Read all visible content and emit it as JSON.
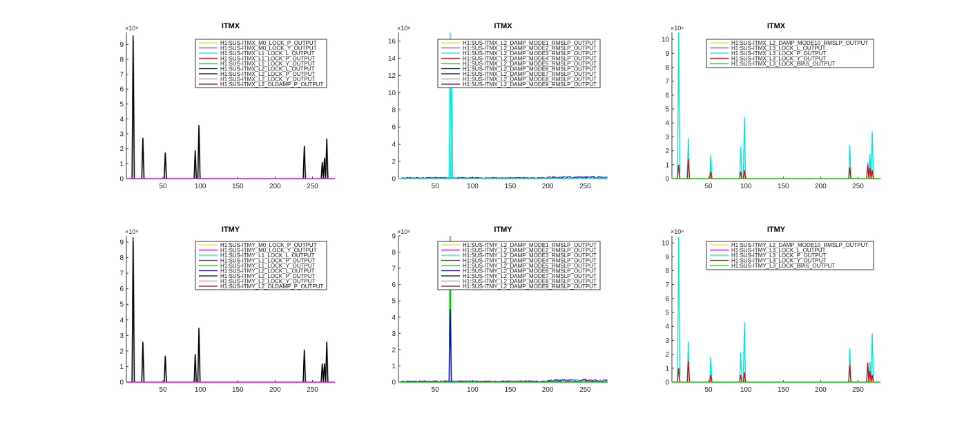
{
  "chart_data": [
    {
      "type": "line",
      "title": "ITMX",
      "exponent_label": "×10⁹",
      "xlim": [
        1,
        280
      ],
      "ylim": [
        0,
        9.8
      ],
      "xticks": [
        50,
        100,
        150,
        200,
        250
      ],
      "yticks": [
        0,
        1,
        2,
        3,
        4,
        5,
        6,
        7,
        8,
        9
      ],
      "legend_position": "top-right",
      "spikes": [
        [
          10,
          9.6
        ],
        [
          23,
          2.75
        ],
        [
          53,
          1.75
        ],
        [
          93,
          1.9
        ],
        [
          98,
          3.6
        ],
        [
          239,
          2.2
        ],
        [
          263,
          1.1
        ],
        [
          266,
          1.4
        ],
        [
          269,
          2.7
        ]
      ],
      "series": [
        {
          "name": "H1:SUS-ITMX_M0_LOCK_P_OUTPUT",
          "color": "#e6e600"
        },
        {
          "name": "H1:SUS-ITMX_M0_LOCK_Y_OUTPUT",
          "color": "#e600e6"
        },
        {
          "name": "H1:SUS-ITMX_L1_LOCK_L_OUTPUT",
          "color": "#00e6e6"
        },
        {
          "name": "H1:SUS-ITMX_L1_LOCK_P_OUTPUT",
          "color": "#e60000"
        },
        {
          "name": "H1:SUS-ITMX_L1_LOCK_Y_OUTPUT",
          "color": "#00cc00"
        },
        {
          "name": "H1:SUS-ITMX_L2_LOCK_L_OUTPUT",
          "color": "#0000cc"
        },
        {
          "name": "H1:SUS-ITMX_L2_LOCK_P_OUTPUT",
          "color": "#000000"
        },
        {
          "name": "H1:SUS-ITMX_L2_LOCK_Y_OUTPUT",
          "color": "#999999"
        },
        {
          "name": "H1:SUS-ITMX_L2_OLDAMP_P_OUTPUT",
          "color": "#800040"
        }
      ],
      "spike_colors": [
        "#000000",
        "#999999"
      ],
      "baseline_color": "#e600e6"
    },
    {
      "type": "line",
      "title": "ITMX",
      "exponent_label": "×10⁶",
      "xlim": [
        1,
        280
      ],
      "ylim": [
        0,
        17
      ],
      "xticks": [
        50,
        100,
        150,
        200,
        250
      ],
      "yticks": [
        0,
        2,
        4,
        6,
        8,
        10,
        12,
        14,
        16
      ],
      "legend_position": "top-right",
      "spikes": [
        [
          70,
          17
        ],
        [
          72,
          11
        ]
      ],
      "noise": [
        [
          5,
          280,
          0.25
        ]
      ],
      "series": [
        {
          "name": "H1:SUS-ITMX_L2_DAMP_MODE1_RMSLP_OUTPUT",
          "color": "#e6e600"
        },
        {
          "name": "H1:SUS-ITMX_L2_DAMP_MODE2_RMSLP_OUTPUT",
          "color": "#e600e6"
        },
        {
          "name": "H1:SUS-ITMX_L2_DAMP_MODE3_RMSLP_OUTPUT",
          "color": "#00e6e6"
        },
        {
          "name": "H1:SUS-ITMX_L2_DAMP_MODE4_RMSLP_OUTPUT",
          "color": "#e60000"
        },
        {
          "name": "H1:SUS-ITMX_L2_DAMP_MODE5_RMSLP_OUTPUT",
          "color": "#00cc00"
        },
        {
          "name": "H1:SUS-ITMX_L2_DAMP_MODE6_RMSLP_OUTPUT",
          "color": "#0000cc"
        },
        {
          "name": "H1:SUS-ITMX_L2_DAMP_MODE7_RMSLP_OUTPUT",
          "color": "#000000"
        },
        {
          "name": "H1:SUS-ITMX_L2_DAMP_MODE8_RMSLP_OUTPUT",
          "color": "#999999"
        },
        {
          "name": "H1:SUS-ITMX_L2_DAMP_MODE9_RMSLP_OUTPUT",
          "color": "#800040"
        }
      ],
      "spike_colors": [
        "#00e6e6"
      ],
      "baseline_color": "#00e6e6"
    },
    {
      "type": "line",
      "title": "ITMX",
      "exponent_label": "×10⁹",
      "xlim": [
        1,
        280
      ],
      "ylim": [
        0,
        10.5
      ],
      "xticks": [
        50,
        100,
        150,
        200,
        250
      ],
      "yticks": [
        0,
        1,
        2,
        3,
        4,
        5,
        6,
        7,
        8,
        9,
        10
      ],
      "legend_position": "top-right",
      "spikes": [
        [
          10,
          10.5
        ],
        [
          23,
          2.9
        ],
        [
          53,
          1.7
        ],
        [
          93,
          2.3
        ],
        [
          98,
          4.4
        ],
        [
          239,
          2.4
        ],
        [
          263,
          1.2
        ],
        [
          266,
          1.8
        ],
        [
          269,
          3.4
        ]
      ],
      "red_spikes": [
        [
          10,
          1.0
        ],
        [
          23,
          1.4
        ],
        [
          53,
          0.5
        ],
        [
          93,
          0.5
        ],
        [
          98,
          0.6
        ],
        [
          239,
          0.8
        ],
        [
          263,
          1.0
        ],
        [
          266,
          0.8
        ],
        [
          269,
          0.6
        ]
      ],
      "series": [
        {
          "name": "H1:SUS-ITMX_L2_DAMP_MODE10_RMSLP_OUTPUT",
          "color": "#e6e600"
        },
        {
          "name": "H1:SUS-ITMX_L3_LOCK_L_OUTPUT",
          "color": "#e600e6"
        },
        {
          "name": "H1:SUS-ITMX_L3_LOCK_P_OUTPUT",
          "color": "#00e6e6"
        },
        {
          "name": "H1:SUS-ITMX_L3_LOCK_Y_OUTPUT",
          "color": "#e60000"
        },
        {
          "name": "H1:SUS-ITMX_L3_LOCK_BIAS_OUTPUT",
          "color": "#00cc00"
        }
      ],
      "spike_colors": [
        "#00e6e6"
      ],
      "baseline_color": "#00cc00"
    },
    {
      "type": "line",
      "title": "ITMY",
      "exponent_label": "×10⁹",
      "xlim": [
        1,
        280
      ],
      "ylim": [
        0,
        9.4
      ],
      "xticks": [
        50,
        100,
        150,
        200,
        250
      ],
      "yticks": [
        0,
        1,
        2,
        3,
        4,
        5,
        6,
        7,
        8,
        9
      ],
      "legend_position": "top-right",
      "spikes": [
        [
          10,
          9.3
        ],
        [
          23,
          2.6
        ],
        [
          53,
          1.7
        ],
        [
          93,
          1.8
        ],
        [
          98,
          3.5
        ],
        [
          239,
          2.1
        ],
        [
          263,
          1.2
        ],
        [
          266,
          1.2
        ],
        [
          269,
          2.6
        ]
      ],
      "series": [
        {
          "name": "H1:SUS-ITMY_M0_LOCK_P_OUTPUT",
          "color": "#e6e600"
        },
        {
          "name": "H1:SUS-ITMY_M0_LOCK_Y_OUTPUT",
          "color": "#e600e6"
        },
        {
          "name": "H1:SUS-ITMY_L1_LOCK_L_OUTPUT",
          "color": "#00e6e6"
        },
        {
          "name": "H1:SUS-ITMY_L1_LOCK_P_OUTPUT",
          "color": "#e60000"
        },
        {
          "name": "H1:SUS-ITMY_L1_LOCK_Y_OUTPUT",
          "color": "#00cc00"
        },
        {
          "name": "H1:SUS-ITMY_L2_LOCK_L_OUTPUT",
          "color": "#0000cc"
        },
        {
          "name": "H1:SUS-ITMY_L2_LOCK_P_OUTPUT",
          "color": "#000000"
        },
        {
          "name": "H1:SUS-ITMY_L2_LOCK_Y_OUTPUT",
          "color": "#999999"
        },
        {
          "name": "H1:SUS-ITMY_L2_OLDAMP_P_OUTPUT",
          "color": "#800040"
        }
      ],
      "spike_colors": [
        "#000000",
        "#999999"
      ],
      "baseline_color": "#e600e6"
    },
    {
      "type": "line",
      "title": "ITMY",
      "exponent_label": "×10⁶",
      "xlim": [
        1,
        280
      ],
      "ylim": [
        0,
        9
      ],
      "xticks": [
        50,
        100,
        150,
        200,
        250
      ],
      "yticks": [
        0,
        1,
        2,
        3,
        4,
        5,
        6,
        7,
        8,
        9
      ],
      "legend_position": "top-right",
      "spikes": [
        [
          70,
          9.0
        ]
      ],
      "blue_spikes": [
        [
          70,
          4.5
        ]
      ],
      "noise": [
        [
          5,
          280,
          0.15
        ]
      ],
      "series": [
        {
          "name": "H1:SUS-ITMY_L2_DAMP_MODE1_RMSLP_OUTPUT",
          "color": "#e6e600"
        },
        {
          "name": "H1:SUS-ITMY_L2_DAMP_MODE2_RMSLP_OUTPUT",
          "color": "#e600e6"
        },
        {
          "name": "H1:SUS-ITMY_L2_DAMP_MODE3_RMSLP_OUTPUT",
          "color": "#00e6e6"
        },
        {
          "name": "H1:SUS-ITMY_L2_DAMP_MODE4_RMSLP_OUTPUT",
          "color": "#e60000"
        },
        {
          "name": "H1:SUS-ITMY_L2_DAMP_MODE5_RMSLP_OUTPUT",
          "color": "#00cc00"
        },
        {
          "name": "H1:SUS-ITMY_L2_DAMP_MODE6_RMSLP_OUTPUT",
          "color": "#0000cc"
        },
        {
          "name": "H1:SUS-ITMY_L2_DAMP_MODE7_RMSLP_OUTPUT",
          "color": "#000000"
        },
        {
          "name": "H1:SUS-ITMY_L2_DAMP_MODE8_RMSLP_OUTPUT",
          "color": "#999999"
        },
        {
          "name": "H1:SUS-ITMY_L2_DAMP_MODE9_RMSLP_OUTPUT",
          "color": "#800040"
        }
      ],
      "spike_colors": [
        "#00cc00"
      ],
      "baseline_color": "#00cc00"
    },
    {
      "type": "line",
      "title": "ITMY",
      "exponent_label": "×10⁹",
      "xlim": [
        1,
        280
      ],
      "ylim": [
        0,
        10.5
      ],
      "xticks": [
        50,
        100,
        150,
        200,
        250
      ],
      "yticks": [
        0,
        1,
        2,
        3,
        4,
        5,
        6,
        7,
        8,
        9,
        10
      ],
      "legend_position": "top-right",
      "spikes": [
        [
          10,
          10.4
        ],
        [
          23,
          2.9
        ],
        [
          53,
          1.8
        ],
        [
          93,
          2.1
        ],
        [
          98,
          4.3
        ],
        [
          239,
          2.4
        ],
        [
          263,
          1.3
        ],
        [
          266,
          1.5
        ],
        [
          269,
          3.5
        ]
      ],
      "red_spikes": [
        [
          10,
          1.0
        ],
        [
          23,
          1.5
        ],
        [
          53,
          0.5
        ],
        [
          93,
          0.5
        ],
        [
          98,
          0.7
        ],
        [
          239,
          1.2
        ],
        [
          263,
          1.4
        ],
        [
          266,
          0.8
        ],
        [
          269,
          0.5
        ]
      ],
      "series": [
        {
          "name": "H1:SUS-ITMY_L2_DAMP_MODE10_RMSLP_OUTPUT",
          "color": "#e6e600"
        },
        {
          "name": "H1:SUS-ITMY_L3_LOCK_L_OUTPUT",
          "color": "#e600e6"
        },
        {
          "name": "H1:SUS-ITMY_L3_LOCK_P_OUTPUT",
          "color": "#00e6e6"
        },
        {
          "name": "H1:SUS-ITMY_L3_LOCK_Y_OUTPUT",
          "color": "#e60000"
        },
        {
          "name": "H1:SUS-ITMY_L3_LOCK_BIAS_OUTPUT",
          "color": "#00cc00"
        }
      ],
      "spike_colors": [
        "#00e6e6"
      ],
      "baseline_color": "#00cc00"
    }
  ]
}
